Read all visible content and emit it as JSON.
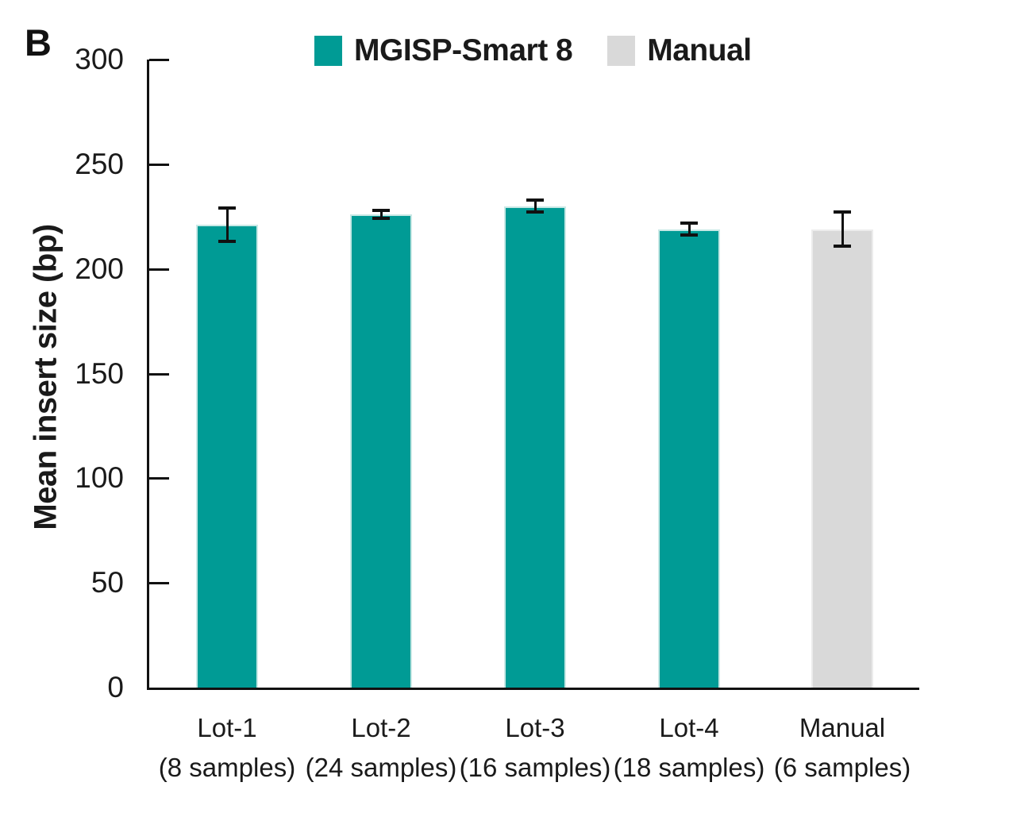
{
  "panel_label": "B",
  "legend": [
    {
      "label": "MGISP-Smart 8",
      "color": "#009B95"
    },
    {
      "label": "Manual",
      "color": "#D9D9D9"
    }
  ],
  "chart_data": {
    "type": "bar",
    "title": "",
    "xlabel": "",
    "ylabel": "Mean insert size (bp)",
    "ylim": [
      0,
      300
    ],
    "yticks": [
      "0",
      "50",
      "100",
      "150",
      "200",
      "250",
      "300"
    ],
    "grid": false,
    "legend_position": "top-center",
    "categories": [
      "Lot-1",
      "Lot-2",
      "Lot-3",
      "Lot-4",
      "Manual"
    ],
    "sublabels": [
      "(8 samples)",
      "(24 samples)",
      "(16 samples)",
      "(18 samples)",
      "(6 samples)"
    ],
    "series_of_bar": [
      "MGISP-Smart 8",
      "MGISP-Smart 8",
      "MGISP-Smart 8",
      "MGISP-Smart 8",
      "Manual"
    ],
    "values": [
      221,
      226,
      230,
      219,
      219
    ],
    "errors": [
      8,
      2,
      3,
      3,
      8
    ],
    "bar_colors": [
      "#009B95",
      "#009B95",
      "#009B95",
      "#009B95",
      "#D9D9D9"
    ],
    "bar_edge_colors": [
      "#C8E8E5",
      "#C8E8E5",
      "#C8E8E5",
      "#C8E8E5",
      "#ECECEC"
    ]
  },
  "colors": {
    "axis": "#111111",
    "text": "#1A1A1A",
    "background": "#FFFFFF"
  }
}
